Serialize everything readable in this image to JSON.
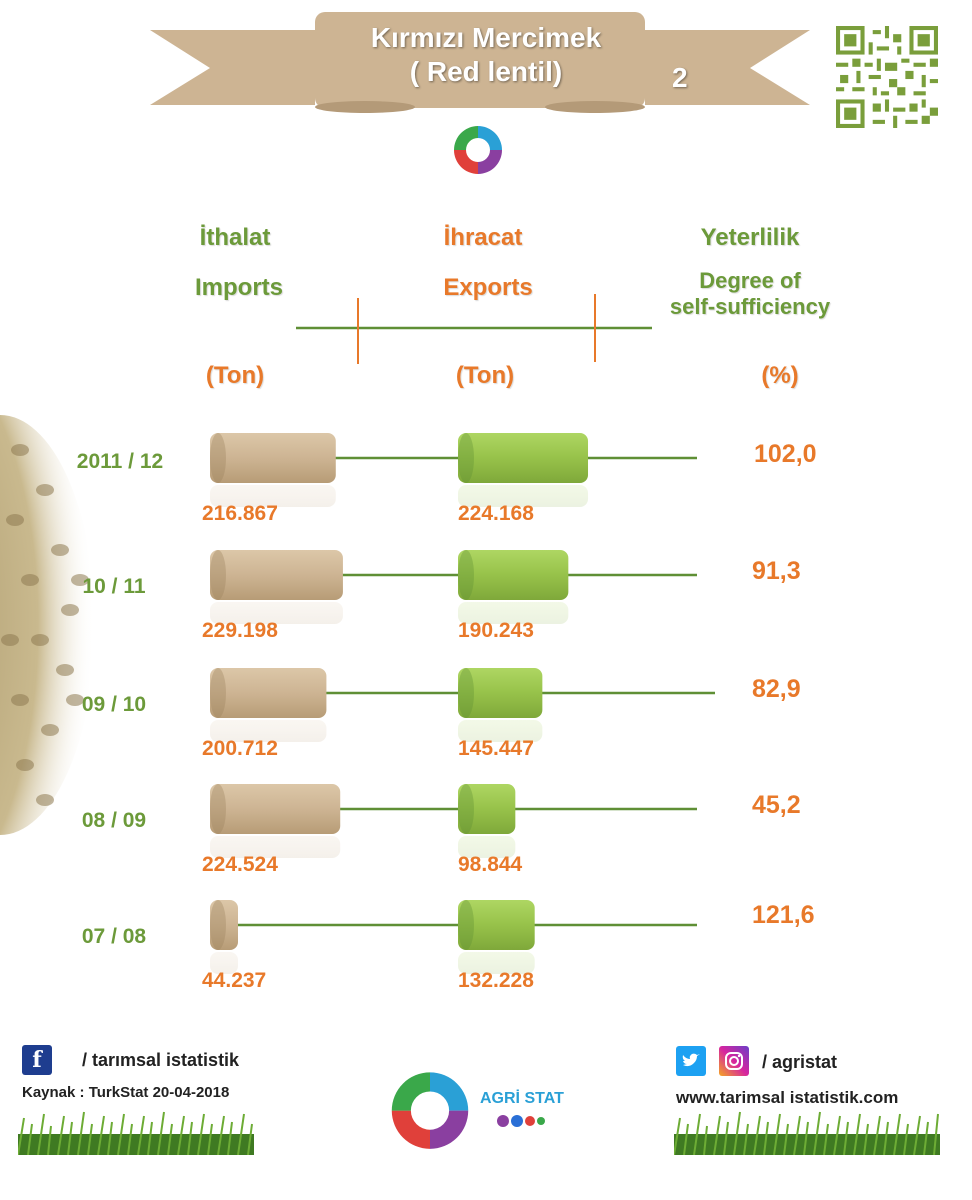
{
  "title": {
    "line1": "Kırmızı Mercimek",
    "line2": "( Red lentil)",
    "page_number": "2"
  },
  "headers": {
    "imports_tr": "İthalat",
    "imports_en": "Imports",
    "exports_tr": "İhracat",
    "exports_en": "Exports",
    "sufficiency_tr": "Yeterlilik",
    "sufficiency_en_1": "Degree of",
    "sufficiency_en_2": "self-sufficiency",
    "unit_imports": "(Ton)",
    "unit_exports": "(Ton)",
    "unit_pct": "(%)"
  },
  "chart_data": {
    "type": "bar",
    "categories": [
      "2011 / 12",
      "10 / 11",
      "09 / 10",
      "08 / 09",
      "07 / 08"
    ],
    "series": [
      {
        "name": "Imports",
        "unit": "Ton",
        "values": [
          216867,
          229198,
          200712,
          224524,
          44237
        ],
        "labels": [
          "216.867",
          "229.198",
          "200.712",
          "224.524",
          "44.237"
        ],
        "color": "#cdb493"
      },
      {
        "name": "Exports",
        "unit": "Ton",
        "values": [
          224168,
          190243,
          145447,
          98844,
          132228
        ],
        "labels": [
          "224.168",
          "190.243",
          "145.447",
          "98.844",
          "132.228"
        ],
        "color": "#97c24a"
      },
      {
        "name": "Degree of self-sufficiency",
        "unit": "%",
        "values": [
          102.0,
          91.3,
          82.9,
          45.2,
          121.6
        ],
        "labels": [
          "102,0",
          "91,3",
          "82,9",
          "45,2",
          "121,6"
        ]
      }
    ]
  },
  "footer": {
    "facebook_handle": "/ tarımsal istatistik",
    "source": "Kaynak : TurkStat  20-04-2018",
    "logo_text": "AGRİ STAT",
    "social_handle": "/ agristat",
    "website": "www.tarimsal istatistik.com"
  },
  "colors": {
    "banner": "#cdb493",
    "import_bar": "#cdb493",
    "export_bar": "#97c24a",
    "green_text": "#6c9a3a",
    "orange_text": "#e8792a",
    "line": "#5f8f35"
  }
}
